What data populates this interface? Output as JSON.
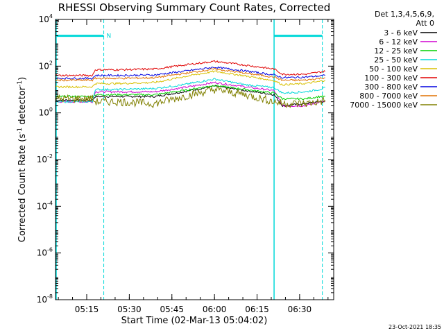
{
  "chart_data": {
    "type": "line",
    "title": "RHESSI Observing Summary Count Rates, Corrected",
    "xlabel": "Start Time (02-Mar-13 05:04:02)",
    "ylabel_base": "Corrected Count Rate (s",
    "ylabel_sup": "-1",
    "ylabel_tail": " detector",
    "ylabel_end": ")",
    "x_range_minutes": [
      0,
      98
    ],
    "x_ticks": [
      {
        "minute": 11,
        "label": "05:15"
      },
      {
        "minute": 26,
        "label": "05:30"
      },
      {
        "minute": 41,
        "label": "05:45"
      },
      {
        "minute": 56,
        "label": "06:00"
      },
      {
        "minute": 71,
        "label": "06:15"
      },
      {
        "minute": 86,
        "label": "06:30"
      }
    ],
    "y_scale": "log",
    "y_exponent_range": [
      -8,
      4
    ],
    "y_ticks": [
      {
        "exp": 4,
        "base": "10",
        "sup": "4"
      },
      {
        "exp": 2,
        "base": "10",
        "sup": "2"
      },
      {
        "exp": 0,
        "base": "10",
        "sup": "0"
      },
      {
        "exp": -2,
        "base": "10",
        "sup": "-2"
      },
      {
        "exp": -4,
        "base": "10",
        "sup": "-4"
      },
      {
        "exp": -6,
        "base": "10",
        "sup": "-6"
      },
      {
        "exp": -8,
        "base": "10",
        "sup": "-8"
      }
    ],
    "legend_placement": "right",
    "legend_header": [
      "Det 1,3,4,5,6,9,",
      "Att 0"
    ],
    "series": [
      {
        "name": "3 - 6 keV",
        "color": "#000000",
        "values": [
          [
            0,
            3.5
          ],
          [
            13,
            3.5
          ],
          [
            14,
            5
          ],
          [
            22,
            5
          ],
          [
            35,
            5
          ],
          [
            45,
            8
          ],
          [
            56,
            14
          ],
          [
            67,
            9
          ],
          [
            77,
            6
          ],
          [
            80,
            2
          ],
          [
            88,
            2.5
          ],
          [
            93,
            3
          ],
          [
            95,
            3
          ]
        ]
      },
      {
        "name": "6 - 12 keV",
        "color": "#d000d0",
        "values": [
          [
            0,
            3
          ],
          [
            13,
            3
          ],
          [
            14,
            8
          ],
          [
            22,
            8
          ],
          [
            35,
            8
          ],
          [
            45,
            12
          ],
          [
            56,
            20
          ],
          [
            67,
            13
          ],
          [
            77,
            9
          ],
          [
            80,
            2
          ],
          [
            88,
            2
          ],
          [
            93,
            3
          ],
          [
            95,
            3
          ]
        ]
      },
      {
        "name": "12 - 25 keV",
        "color": "#00d000",
        "values": [
          [
            0,
            5
          ],
          [
            13,
            5
          ],
          [
            14,
            6
          ],
          [
            22,
            6
          ],
          [
            35,
            6
          ],
          [
            45,
            9
          ],
          [
            56,
            15
          ],
          [
            67,
            10
          ],
          [
            77,
            7
          ],
          [
            80,
            4
          ],
          [
            88,
            4
          ],
          [
            93,
            5
          ],
          [
            95,
            5
          ]
        ]
      },
      {
        "name": "25 - 50 keV",
        "color": "#00d8d8",
        "values": [
          [
            0,
            3
          ],
          [
            13,
            3
          ],
          [
            14,
            10
          ],
          [
            22,
            10
          ],
          [
            35,
            11
          ],
          [
            45,
            16
          ],
          [
            56,
            28
          ],
          [
            67,
            16
          ],
          [
            77,
            12
          ],
          [
            80,
            7
          ],
          [
            88,
            8
          ],
          [
            93,
            10
          ],
          [
            95,
            12
          ]
        ]
      },
      {
        "name": "50 - 100 keV",
        "color": "#d8c000",
        "values": [
          [
            0,
            13
          ],
          [
            13,
            13
          ],
          [
            14,
            18
          ],
          [
            22,
            18
          ],
          [
            35,
            20
          ],
          [
            45,
            35
          ],
          [
            56,
            60
          ],
          [
            67,
            38
          ],
          [
            77,
            24
          ],
          [
            80,
            16
          ],
          [
            88,
            18
          ],
          [
            93,
            22
          ],
          [
            95,
            25
          ]
        ]
      },
      {
        "name": "100 - 300 keV",
        "color": "#e00000",
        "values": [
          [
            0,
            40
          ],
          [
            13,
            40
          ],
          [
            14,
            70
          ],
          [
            22,
            70
          ],
          [
            35,
            75
          ],
          [
            45,
            110
          ],
          [
            56,
            160
          ],
          [
            67,
            110
          ],
          [
            77,
            75
          ],
          [
            80,
            45
          ],
          [
            88,
            45
          ],
          [
            93,
            55
          ],
          [
            95,
            60
          ]
        ]
      },
      {
        "name": "300 - 800 keV",
        "color": "#0000e0",
        "values": [
          [
            0,
            30
          ],
          [
            13,
            30
          ],
          [
            14,
            40
          ],
          [
            22,
            40
          ],
          [
            35,
            42
          ],
          [
            45,
            60
          ],
          [
            56,
            90
          ],
          [
            67,
            62
          ],
          [
            77,
            42
          ],
          [
            80,
            32
          ],
          [
            88,
            34
          ],
          [
            93,
            38
          ],
          [
            95,
            40
          ]
        ]
      },
      {
        "name": "800 - 7000 keV",
        "color": "#e07000",
        "values": [
          [
            0,
            25
          ],
          [
            13,
            25
          ],
          [
            14,
            30
          ],
          [
            22,
            30
          ],
          [
            35,
            32
          ],
          [
            45,
            48
          ],
          [
            56,
            75
          ],
          [
            67,
            50
          ],
          [
            77,
            34
          ],
          [
            80,
            25
          ],
          [
            88,
            25
          ],
          [
            93,
            30
          ],
          [
            95,
            32
          ]
        ]
      },
      {
        "name": "7000 - 15000 keV",
        "color": "#808000",
        "values": [
          [
            0,
            4
          ],
          [
            13,
            4
          ],
          [
            14,
            3
          ],
          [
            22,
            3
          ],
          [
            35,
            2.5
          ],
          [
            45,
            5
          ],
          [
            56,
            10
          ],
          [
            67,
            6
          ],
          [
            77,
            3
          ],
          [
            80,
            2.5
          ],
          [
            88,
            2.5
          ],
          [
            93,
            3
          ],
          [
            95,
            3.5
          ]
        ]
      }
    ],
    "saa_bars": [
      {
        "start_minute": 0,
        "end_minute": 17,
        "level_exp": 3.3,
        "label": "N"
      },
      {
        "start_minute": 77,
        "end_minute": 94,
        "level_exp": 3.3,
        "label": ""
      }
    ],
    "solid_markers_minute": [
      0,
      77
    ],
    "dashed_markers_minute": [
      17,
      94
    ]
  },
  "timestamp": "23-Oct-2021 18:35"
}
